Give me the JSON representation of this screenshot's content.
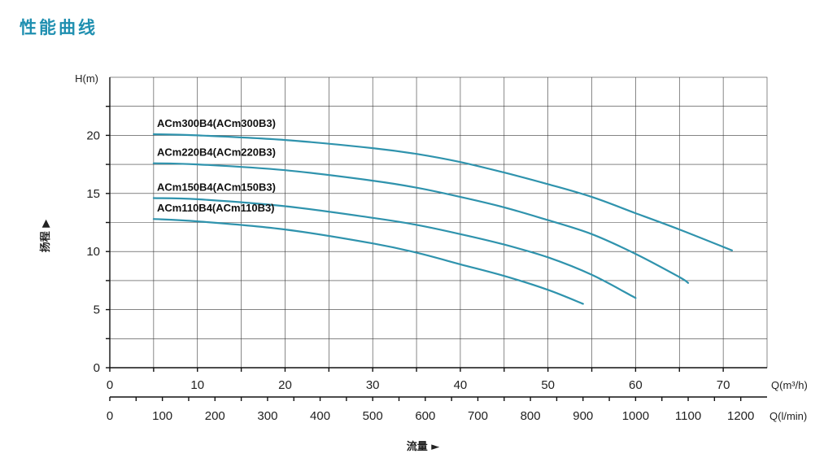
{
  "page": {
    "title": "性能曲线"
  },
  "chart_data": {
    "type": "line",
    "ylabel": "H(m)",
    "ylabel_side": "扬程 ▶",
    "xlabel": "流量 ►",
    "x_unit_top": "Q(m³/h)",
    "x_unit_bottom": "Q(l/min)",
    "xlim": [
      0,
      75
    ],
    "ylim": [
      0,
      25
    ],
    "y_ticks": [
      0,
      5,
      10,
      15,
      20
    ],
    "x_ticks_top": [
      0,
      10,
      20,
      30,
      40,
      50,
      60,
      70
    ],
    "x_ticks_bottom": [
      0,
      100,
      200,
      300,
      400,
      500,
      600,
      700,
      800,
      900,
      1000,
      1100,
      1200
    ],
    "grid": true,
    "curve_color": "#2f93ad",
    "series": [
      {
        "name": "ACm300B4(ACm300B3)",
        "x": [
          5,
          10,
          20,
          30,
          35,
          40,
          45,
          50,
          55,
          60,
          65,
          71
        ],
        "values": [
          20.1,
          20.0,
          19.6,
          18.9,
          18.4,
          17.7,
          16.8,
          15.8,
          14.7,
          13.3,
          11.9,
          10.1
        ]
      },
      {
        "name": "ACm220B4(ACm220B3)",
        "x": [
          5,
          10,
          20,
          30,
          35,
          40,
          45,
          50,
          55,
          60,
          65,
          66
        ],
        "values": [
          17.6,
          17.5,
          17.0,
          16.1,
          15.5,
          14.7,
          13.8,
          12.7,
          11.5,
          9.8,
          7.8,
          7.3
        ]
      },
      {
        "name": "ACm150B4(ACm150B3)",
        "x": [
          5,
          10,
          20,
          30,
          35,
          40,
          45,
          50,
          55,
          60
        ],
        "values": [
          14.6,
          14.5,
          13.9,
          12.9,
          12.3,
          11.5,
          10.6,
          9.5,
          8.0,
          6.0
        ]
      },
      {
        "name": "ACm110B4(ACm110B3)",
        "x": [
          5,
          10,
          20,
          30,
          35,
          40,
          45,
          50,
          54
        ],
        "values": [
          12.8,
          12.6,
          11.9,
          10.7,
          9.9,
          8.9,
          7.9,
          6.7,
          5.5
        ]
      }
    ]
  }
}
